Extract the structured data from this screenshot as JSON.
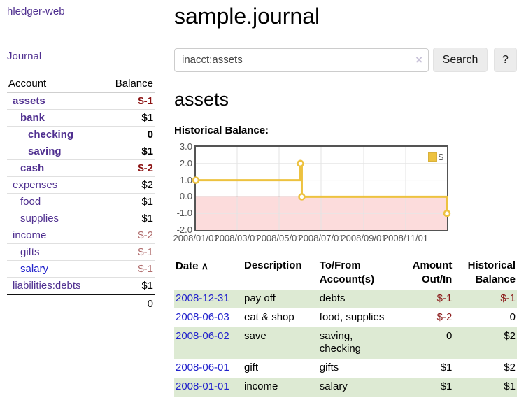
{
  "colors": {
    "link_purple": "#503090",
    "link_blue": "#2222cc",
    "negative_strong": "#8b1212",
    "negative_muted": "#b06c6c",
    "table_negative": "#8b1a1a",
    "row_stripe_green": "#ddead3",
    "chart_line_yellow": "#EDC240",
    "chart_negative_pink": "#fcdcdc",
    "chart_zero_red": "#990000"
  },
  "sidebar": {
    "brand": "hledger-web",
    "journal_link": "Journal",
    "accounts_table": {
      "headers": {
        "account": "Account",
        "balance": "Balance"
      },
      "rows": [
        {
          "name": "assets",
          "balance": "$-1"
        },
        {
          "name": "bank",
          "balance": "$1"
        },
        {
          "name": "checking",
          "balance": "0"
        },
        {
          "name": "saving",
          "balance": "$1"
        },
        {
          "name": "cash",
          "balance": "$-2"
        },
        {
          "name": "expenses",
          "balance": "$2"
        },
        {
          "name": "food",
          "balance": "$1"
        },
        {
          "name": "supplies",
          "balance": "$1"
        },
        {
          "name": "income",
          "balance": "$-2"
        },
        {
          "name": "gifts",
          "balance": "$-1"
        },
        {
          "name": "salary",
          "balance": "$-1"
        },
        {
          "name": "liabilities:debts",
          "balance": "$1"
        }
      ],
      "total": "0"
    }
  },
  "main": {
    "title": "sample.journal",
    "search": {
      "query": "inacct:assets",
      "clear_icon": "×",
      "search_label": "Search",
      "help_label": "?"
    },
    "account_heading": "assets",
    "chart_heading": "Historical Balance:",
    "register": {
      "headers": {
        "date": "Date",
        "sort_icon": "∧",
        "description": "Description",
        "accounts": "To/From\nAccount(s)",
        "amount": "Amount\nOut/In",
        "balance": "Historical\nBalance"
      },
      "rows": [
        {
          "date": "2008-12-31",
          "description": "pay off",
          "accounts": "debts",
          "amount": "$-1",
          "balance": "$-1"
        },
        {
          "date": "2008-06-03",
          "description": "eat & shop",
          "accounts": "food, supplies",
          "amount": "$-2",
          "balance": "0"
        },
        {
          "date": "2008-06-02",
          "description": "save",
          "accounts": "saving,\nchecking",
          "amount": "0",
          "balance": "$2"
        },
        {
          "date": "2008-06-01",
          "description": "gift",
          "accounts": "gifts",
          "amount": "$1",
          "balance": "$2"
        },
        {
          "date": "2008-01-01",
          "description": "income",
          "accounts": "salary",
          "amount": "$1",
          "balance": "$1"
        }
      ]
    }
  },
  "chart_data": {
    "type": "line",
    "step": true,
    "title": "Historical Balance",
    "x_range": [
      "2008-01-01",
      "2008-12-31"
    ],
    "ylim": [
      -2.0,
      3.0
    ],
    "yticks": [
      3.0,
      2.0,
      1.0,
      0.0,
      -1.0,
      -2.0
    ],
    "xticks": [
      "2008/01/01",
      "2008/03/01",
      "2008/05/01",
      "2008/07/01",
      "2008/09/01",
      "2008/11/01"
    ],
    "series": [
      {
        "name": "$",
        "color": "#EDC240",
        "points": [
          [
            "2008-01-01",
            1
          ],
          [
            "2008-06-01",
            2
          ],
          [
            "2008-06-03",
            0
          ],
          [
            "2008-12-31",
            -1
          ]
        ]
      }
    ],
    "grid": true,
    "legend_position": "top-right",
    "negative_fill": "#fcdcdc",
    "zero_line_color": "#990000"
  }
}
